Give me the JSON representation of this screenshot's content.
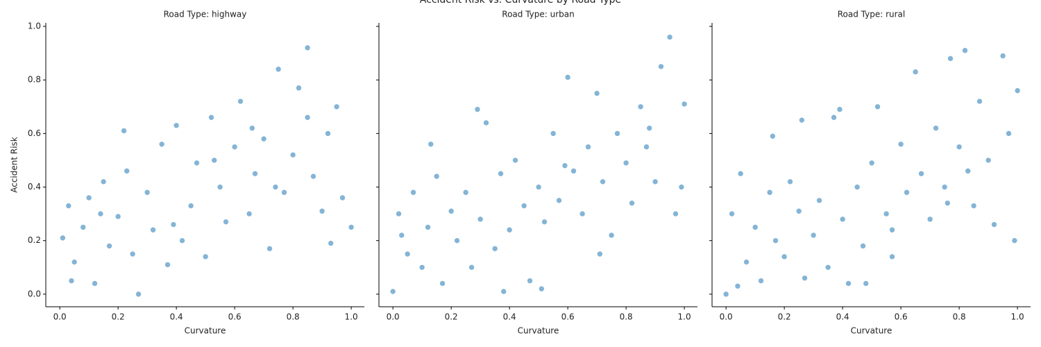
{
  "title": "Accident Risk vs. Curvature by Road Type",
  "chart_data": [
    {
      "type": "scatter",
      "title": "Road Type: highway",
      "xlabel": "Curvature",
      "ylabel": "Accident Risk",
      "color": "#1f77b4",
      "xlim": [
        -0.048,
        1.045
      ],
      "ylim": [
        -0.047,
        1.013
      ],
      "xticks": [
        {
          "value": 0,
          "label": "0.0"
        },
        {
          "value": 0.2,
          "label": "0.2"
        },
        {
          "value": 0.4,
          "label": "0.4"
        },
        {
          "value": 0.6,
          "label": "0.6"
        },
        {
          "value": 0.8,
          "label": "0.8"
        },
        {
          "value": 1,
          "label": "1.0"
        }
      ],
      "yticks": [
        {
          "value": 0,
          "label": "0.0"
        },
        {
          "value": 0.2,
          "label": "0.2"
        },
        {
          "value": 0.4,
          "label": "0.4"
        },
        {
          "value": 0.6,
          "label": "0.6"
        },
        {
          "value": 0.8,
          "label": "0.8"
        },
        {
          "value": 1,
          "label": "1.0"
        }
      ],
      "x": [
        0.01,
        0.03,
        0.05,
        0.08,
        0.1,
        0.12,
        0.15,
        0.17,
        0.2,
        0.22,
        0.25,
        0.27,
        0.3,
        0.32,
        0.35,
        0.37,
        0.4,
        0.42,
        0.45,
        0.47,
        0.5,
        0.52,
        0.55,
        0.57,
        0.6,
        0.62,
        0.65,
        0.67,
        0.7,
        0.72,
        0.75,
        0.77,
        0.8,
        0.82,
        0.85,
        0.87,
        0.9,
        0.92,
        0.95,
        0.97,
        1.0,
        0.04,
        0.14,
        0.23,
        0.39,
        0.53,
        0.66,
        0.74,
        0.85,
        0.93
      ],
      "values": [
        0.21,
        0.33,
        0.12,
        0.25,
        0.36,
        0.04,
        0.42,
        0.18,
        0.29,
        0.61,
        0.15,
        0.0,
        0.38,
        0.24,
        0.56,
        0.11,
        0.63,
        0.2,
        0.33,
        0.49,
        0.14,
        0.66,
        0.4,
        0.27,
        0.55,
        0.72,
        0.3,
        0.45,
        0.58,
        0.17,
        0.84,
        0.38,
        0.52,
        0.77,
        0.92,
        0.44,
        0.31,
        0.6,
        0.7,
        0.36,
        0.25,
        0.05,
        0.3,
        0.46,
        0.26,
        0.5,
        0.62,
        0.4,
        0.66,
        0.19
      ]
    },
    {
      "type": "scatter",
      "title": "Road Type: urban",
      "xlabel": "Curvature",
      "color": "#1f77b4",
      "xlim": [
        -0.048,
        1.045
      ],
      "ylim": [
        -0.047,
        1.013
      ],
      "xticks": [
        {
          "value": 0,
          "label": "0.0"
        },
        {
          "value": 0.2,
          "label": "0.2"
        },
        {
          "value": 0.4,
          "label": "0.4"
        },
        {
          "value": 0.6,
          "label": "0.6"
        },
        {
          "value": 0.8,
          "label": "0.8"
        },
        {
          "value": 1,
          "label": "1.0"
        }
      ],
      "yticks": [
        0,
        0.2,
        0.4,
        0.6,
        0.8,
        1
      ],
      "x": [
        0.0,
        0.02,
        0.05,
        0.07,
        0.1,
        0.12,
        0.15,
        0.17,
        0.2,
        0.22,
        0.25,
        0.27,
        0.3,
        0.32,
        0.35,
        0.37,
        0.4,
        0.42,
        0.45,
        0.47,
        0.5,
        0.52,
        0.55,
        0.57,
        0.6,
        0.62,
        0.65,
        0.67,
        0.7,
        0.72,
        0.75,
        0.77,
        0.8,
        0.82,
        0.85,
        0.87,
        0.9,
        0.92,
        0.95,
        0.97,
        1.0,
        0.03,
        0.13,
        0.29,
        0.38,
        0.51,
        0.59,
        0.71,
        0.88,
        0.99
      ],
      "values": [
        0.01,
        0.3,
        0.15,
        0.38,
        0.1,
        0.25,
        0.44,
        0.04,
        0.31,
        0.2,
        0.38,
        0.1,
        0.28,
        0.64,
        0.17,
        0.45,
        0.24,
        0.5,
        0.33,
        0.05,
        0.4,
        0.27,
        0.6,
        0.35,
        0.81,
        0.46,
        0.3,
        0.55,
        0.75,
        0.42,
        0.22,
        0.6,
        0.49,
        0.34,
        0.7,
        0.55,
        0.42,
        0.85,
        0.96,
        0.3,
        0.71,
        0.22,
        0.56,
        0.69,
        0.01,
        0.02,
        0.48,
        0.15,
        0.62,
        0.4
      ]
    },
    {
      "type": "scatter",
      "title": "Road Type: rural",
      "xlabel": "Curvature",
      "color": "#1f77b4",
      "xlim": [
        -0.048,
        1.045
      ],
      "ylim": [
        -0.047,
        1.013
      ],
      "xticks": [
        {
          "value": 0,
          "label": "0.0"
        },
        {
          "value": 0.2,
          "label": "0.2"
        },
        {
          "value": 0.4,
          "label": "0.4"
        },
        {
          "value": 0.6,
          "label": "0.6"
        },
        {
          "value": 0.8,
          "label": "0.8"
        },
        {
          "value": 1,
          "label": "1.0"
        }
      ],
      "yticks": [
        0,
        0.2,
        0.4,
        0.6,
        0.8,
        1
      ],
      "x": [
        0.0,
        0.02,
        0.05,
        0.07,
        0.1,
        0.12,
        0.15,
        0.17,
        0.2,
        0.22,
        0.25,
        0.27,
        0.3,
        0.32,
        0.35,
        0.37,
        0.4,
        0.42,
        0.45,
        0.47,
        0.5,
        0.52,
        0.55,
        0.57,
        0.6,
        0.62,
        0.65,
        0.67,
        0.7,
        0.72,
        0.75,
        0.77,
        0.8,
        0.82,
        0.85,
        0.87,
        0.9,
        0.92,
        0.95,
        0.97,
        1.0,
        0.04,
        0.16,
        0.26,
        0.39,
        0.48,
        0.57,
        0.76,
        0.83,
        0.99
      ],
      "values": [
        0.0,
        0.3,
        0.45,
        0.12,
        0.25,
        0.05,
        0.38,
        0.2,
        0.14,
        0.42,
        0.31,
        0.06,
        0.22,
        0.35,
        0.1,
        0.66,
        0.28,
        0.04,
        0.4,
        0.18,
        0.49,
        0.7,
        0.3,
        0.14,
        0.56,
        0.38,
        0.83,
        0.45,
        0.28,
        0.62,
        0.4,
        0.88,
        0.55,
        0.91,
        0.33,
        0.72,
        0.5,
        0.26,
        0.89,
        0.6,
        0.76,
        0.03,
        0.59,
        0.65,
        0.69,
        0.04,
        0.24,
        0.34,
        0.46,
        0.2
      ]
    }
  ]
}
